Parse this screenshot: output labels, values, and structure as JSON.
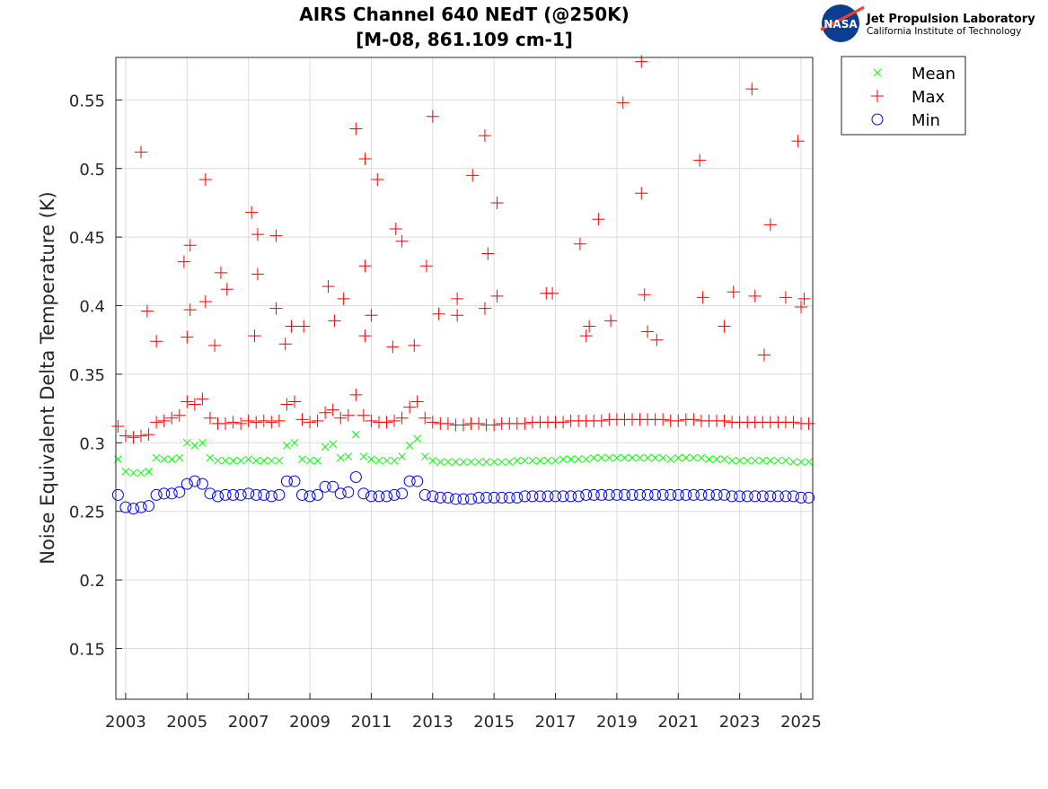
{
  "logo": {
    "emblem_text": "NASA",
    "org_name": "Jet Propulsion Laboratory",
    "org_subtitle": "California Institute of Technology"
  },
  "chart_data": {
    "type": "scatter",
    "title": [
      "AIRS Channel 640 NEdT (@250K)",
      "[M-08, 861.109 cm-1]"
    ],
    "xlabel": "",
    "ylabel": "Noise Equivalent Delta Temperature (K)",
    "xlim": [
      2002.68,
      2025.38
    ],
    "ylim": [
      0.113,
      0.581
    ],
    "xticks": [
      2003,
      2005,
      2007,
      2009,
      2011,
      2013,
      2015,
      2017,
      2019,
      2021,
      2023,
      2025
    ],
    "yticks": [
      0.15,
      0.2,
      0.25,
      0.3,
      0.35,
      0.4,
      0.45,
      0.5,
      0.55
    ],
    "ytick_labels": [
      "0.15",
      "0.2",
      "0.25",
      "0.3",
      "0.35",
      "0.4",
      "0.45",
      "0.5",
      "0.55"
    ],
    "grid": true,
    "legend_placement": "outside-top-right",
    "x": [
      2002.75,
      2003.0,
      2003.25,
      2003.5,
      2003.75,
      2004.0,
      2004.25,
      2004.5,
      2004.75,
      2005.0,
      2005.25,
      2005.5,
      2005.75,
      2006.0,
      2006.25,
      2006.5,
      2006.75,
      2007.0,
      2007.25,
      2007.5,
      2007.75,
      2008.0,
      2008.25,
      2008.5,
      2008.75,
      2009.0,
      2009.25,
      2009.5,
      2009.75,
      2010.0,
      2010.25,
      2010.5,
      2010.75,
      2011.0,
      2011.25,
      2011.5,
      2011.75,
      2012.0,
      2012.25,
      2012.5,
      2012.75,
      2013.0,
      2013.25,
      2013.5,
      2013.75,
      2014.0,
      2014.25,
      2014.5,
      2014.75,
      2015.0,
      2015.25,
      2015.5,
      2015.75,
      2016.0,
      2016.25,
      2016.5,
      2016.75,
      2017.0,
      2017.25,
      2017.5,
      2017.75,
      2018.0,
      2018.25,
      2018.5,
      2018.75,
      2019.0,
      2019.25,
      2019.5,
      2019.75,
      2020.0,
      2020.25,
      2020.5,
      2020.75,
      2021.0,
      2021.25,
      2021.5,
      2021.75,
      2022.0,
      2022.25,
      2022.5,
      2022.75,
      2023.0,
      2023.25,
      2023.5,
      2023.75,
      2024.0,
      2024.25,
      2024.5,
      2024.75,
      2025.0,
      2025.25
    ],
    "series": [
      {
        "name": "Mean",
        "marker": "x",
        "color": "#00ff00",
        "values": [
          0.288,
          0.279,
          0.278,
          0.278,
          0.279,
          0.289,
          0.288,
          0.288,
          0.289,
          0.3,
          0.298,
          0.3,
          0.289,
          0.287,
          0.287,
          0.287,
          0.287,
          0.288,
          0.287,
          0.287,
          0.287,
          0.287,
          0.298,
          0.3,
          0.288,
          0.287,
          0.287,
          0.297,
          0.299,
          0.289,
          0.29,
          0.306,
          0.29,
          0.288,
          0.287,
          0.287,
          0.287,
          0.29,
          0.298,
          0.303,
          0.29,
          0.287,
          0.286,
          0.286,
          0.286,
          0.286,
          0.286,
          0.286,
          0.286,
          0.286,
          0.286,
          0.286,
          0.287,
          0.287,
          0.287,
          0.287,
          0.287,
          0.287,
          0.288,
          0.288,
          0.288,
          0.288,
          0.289,
          0.289,
          0.289,
          0.289,
          0.289,
          0.289,
          0.289,
          0.289,
          0.289,
          0.289,
          0.288,
          0.289,
          0.289,
          0.289,
          0.289,
          0.288,
          0.288,
          0.288,
          0.287,
          0.287,
          0.287,
          0.287,
          0.287,
          0.287,
          0.287,
          0.287,
          0.286,
          0.286,
          0.286
        ]
      },
      {
        "name": "Max",
        "marker": "+",
        "color": "#ff0000",
        "values": [
          0.312,
          0.305,
          0.304,
          0.305,
          0.306,
          0.315,
          0.316,
          0.318,
          0.32,
          0.33,
          0.328,
          0.332,
          0.318,
          0.314,
          0.314,
          0.315,
          0.314,
          0.316,
          0.315,
          0.316,
          0.315,
          0.316,
          0.328,
          0.33,
          0.317,
          0.315,
          0.316,
          0.322,
          0.324,
          0.318,
          0.32,
          0.335,
          0.32,
          0.316,
          0.315,
          0.315,
          0.316,
          0.318,
          0.326,
          0.33,
          0.318,
          0.315,
          0.314,
          0.314,
          0.313,
          0.313,
          0.314,
          0.314,
          0.313,
          0.313,
          0.314,
          0.314,
          0.314,
          0.314,
          0.315,
          0.315,
          0.315,
          0.315,
          0.315,
          0.316,
          0.316,
          0.316,
          0.316,
          0.316,
          0.317,
          0.317,
          0.317,
          0.317,
          0.317,
          0.317,
          0.317,
          0.317,
          0.316,
          0.316,
          0.317,
          0.317,
          0.316,
          0.316,
          0.316,
          0.316,
          0.315,
          0.315,
          0.315,
          0.315,
          0.315,
          0.315,
          0.315,
          0.315,
          0.315,
          0.314,
          0.314
        ],
        "outliers": [
          [
            2003.5,
            0.512
          ],
          [
            2003.7,
            0.396
          ],
          [
            2004.0,
            0.374
          ],
          [
            2004.9,
            0.432
          ],
          [
            2005.1,
            0.444
          ],
          [
            2005.6,
            0.492
          ],
          [
            2005.1,
            0.397
          ],
          [
            2005.0,
            0.377
          ],
          [
            2005.6,
            0.403
          ],
          [
            2005.9,
            0.371
          ],
          [
            2006.1,
            0.424
          ],
          [
            2006.3,
            0.412
          ],
          [
            2007.1,
            0.468
          ],
          [
            2007.3,
            0.452
          ],
          [
            2007.3,
            0.423
          ],
          [
            2007.9,
            0.451
          ],
          [
            2007.2,
            0.378
          ],
          [
            2007.9,
            0.398
          ],
          [
            2008.2,
            0.372
          ],
          [
            2008.4,
            0.385
          ],
          [
            2008.8,
            0.385
          ],
          [
            2009.6,
            0.414
          ],
          [
            2009.8,
            0.389
          ],
          [
            2010.1,
            0.405
          ],
          [
            2010.5,
            0.529
          ],
          [
            2010.8,
            0.507
          ],
          [
            2010.8,
            0.429
          ],
          [
            2011.2,
            0.492
          ],
          [
            2011.0,
            0.393
          ],
          [
            2010.8,
            0.378
          ],
          [
            2011.8,
            0.456
          ],
          [
            2012.0,
            0.447
          ],
          [
            2011.7,
            0.37
          ],
          [
            2012.4,
            0.371
          ],
          [
            2012.8,
            0.429
          ],
          [
            2013.0,
            0.538
          ],
          [
            2013.2,
            0.394
          ],
          [
            2013.8,
            0.405
          ],
          [
            2013.8,
            0.393
          ],
          [
            2014.3,
            0.495
          ],
          [
            2014.7,
            0.524
          ],
          [
            2014.8,
            0.438
          ],
          [
            2015.1,
            0.475
          ],
          [
            2015.1,
            0.407
          ],
          [
            2014.7,
            0.398
          ],
          [
            2016.7,
            0.409
          ],
          [
            2016.9,
            0.409
          ],
          [
            2017.8,
            0.445
          ],
          [
            2018.0,
            0.378
          ],
          [
            2018.1,
            0.385
          ],
          [
            2018.4,
            0.463
          ],
          [
            2018.8,
            0.389
          ],
          [
            2019.2,
            0.548
          ],
          [
            2019.8,
            0.578
          ],
          [
            2019.8,
            0.482
          ],
          [
            2019.9,
            0.408
          ],
          [
            2020.0,
            0.381
          ],
          [
            2020.3,
            0.375
          ],
          [
            2021.7,
            0.506
          ],
          [
            2021.8,
            0.406
          ],
          [
            2022.5,
            0.385
          ],
          [
            2022.8,
            0.41
          ],
          [
            2023.4,
            0.558
          ],
          [
            2023.5,
            0.407
          ],
          [
            2023.8,
            0.364
          ],
          [
            2024.0,
            0.459
          ],
          [
            2024.5,
            0.406
          ],
          [
            2024.9,
            0.52
          ],
          [
            2025.0,
            0.399
          ],
          [
            2025.1,
            0.405
          ]
        ]
      },
      {
        "name": "Min",
        "marker": "o",
        "color": "#0000ff",
        "values": [
          0.262,
          0.253,
          0.252,
          0.253,
          0.254,
          0.262,
          0.263,
          0.263,
          0.264,
          0.27,
          0.272,
          0.27,
          0.263,
          0.261,
          0.262,
          0.262,
          0.262,
          0.263,
          0.262,
          0.262,
          0.261,
          0.262,
          0.272,
          0.272,
          0.262,
          0.261,
          0.262,
          0.268,
          0.268,
          0.263,
          0.264,
          0.275,
          0.263,
          0.261,
          0.261,
          0.261,
          0.262,
          0.263,
          0.272,
          0.272,
          0.262,
          0.261,
          0.26,
          0.26,
          0.259,
          0.259,
          0.259,
          0.26,
          0.26,
          0.26,
          0.26,
          0.26,
          0.26,
          0.261,
          0.261,
          0.261,
          0.261,
          0.261,
          0.261,
          0.261,
          0.261,
          0.262,
          0.262,
          0.262,
          0.262,
          0.262,
          0.262,
          0.262,
          0.262,
          0.262,
          0.262,
          0.262,
          0.262,
          0.262,
          0.262,
          0.262,
          0.262,
          0.262,
          0.262,
          0.262,
          0.261,
          0.261,
          0.261,
          0.261,
          0.261,
          0.261,
          0.261,
          0.261,
          0.261,
          0.26,
          0.26
        ]
      }
    ]
  }
}
